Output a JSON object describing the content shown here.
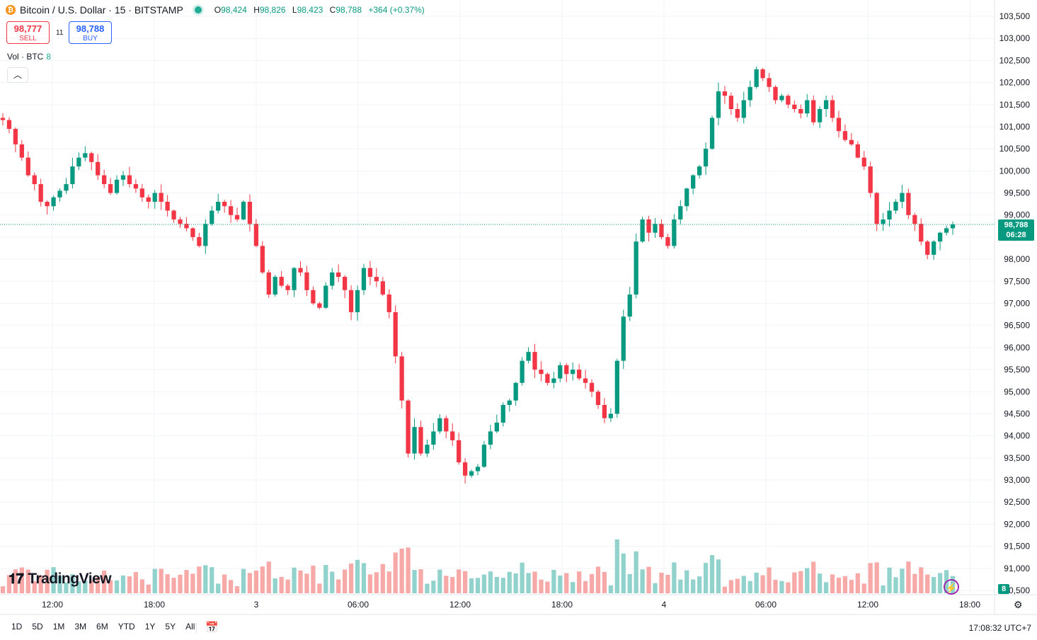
{
  "header": {
    "symbol_title": "Bitcoin / U.S. Dollar · 15 · BITSTAMP",
    "ohlc": {
      "o_label": "O",
      "o": "98,424",
      "h_label": "H",
      "h": "98,826",
      "l_label": "L",
      "l": "98,423",
      "c_label": "C",
      "c": "98,788",
      "change": "+364 (+0.37%)"
    }
  },
  "trade": {
    "sell_price": "98,777",
    "sell_label": "SELL",
    "spread": "11",
    "buy_price": "98,788",
    "buy_label": "BUY"
  },
  "volume_indicator": {
    "label": "Vol · BTC",
    "value": "8"
  },
  "collapse_icon": "chevron-up",
  "logo_text": "TradingView",
  "current_price": {
    "price": "98,788",
    "countdown": "06:28"
  },
  "volume_last": "8",
  "timeframes": [
    "1D",
    "5D",
    "1M",
    "3M",
    "6M",
    "YTD",
    "1Y",
    "5Y",
    "All"
  ],
  "clock": "17:08:32 UTC+7",
  "colors": {
    "up": "#089981",
    "down": "#f23645",
    "up_vol": "#92d2cc",
    "down_vol": "#f7a9a7",
    "grid": "#f0f3fa"
  },
  "chart_data": {
    "type": "candlestick",
    "interval": "15",
    "y_ticks": [
      "103,500",
      "103,000",
      "102,500",
      "102,000",
      "101,500",
      "101,000",
      "100,500",
      "100,000",
      "99,500",
      "99,000",
      "98,500",
      "98,000",
      "97,500",
      "97,000",
      "96,500",
      "96,000",
      "95,500",
      "95,000",
      "94,500",
      "94,000",
      "93,500",
      "93,000",
      "92,500",
      "92,000",
      "91,500",
      "91,000",
      "90,500"
    ],
    "x_ticks": [
      "12:00",
      "18:00",
      "3",
      "06:00",
      "12:00",
      "18:00",
      "4",
      "06:00",
      "12:00",
      "18:00"
    ],
    "ylim": [
      90500,
      103700
    ],
    "close_path": [
      101150,
      100950,
      100600,
      100300,
      99900,
      99700,
      99300,
      99200,
      99400,
      99550,
      99700,
      100100,
      100300,
      100400,
      100200,
      99900,
      99700,
      99500,
      99800,
      99900,
      99700,
      99600,
      99400,
      99300,
      99500,
      99300,
      99100,
      98900,
      98800,
      98700,
      98500,
      98300,
      98800,
      99100,
      99300,
      99200,
      99000,
      98900,
      99300,
      98800,
      98300,
      97700,
      97200,
      97600,
      97400,
      97300,
      97800,
      97700,
      97300,
      97000,
      96900,
      97400,
      97700,
      97600,
      97300,
      96800,
      97300,
      97800,
      97600,
      97500,
      97200,
      96800,
      95800,
      94800,
      93600,
      94200,
      93600,
      93800,
      94100,
      94400,
      94100,
      93900,
      93400,
      93100,
      93200,
      93300,
      93800,
      94100,
      94300,
      94700,
      94800,
      95200,
      95700,
      95900,
      95500,
      95400,
      95200,
      95300,
      95600,
      95400,
      95500,
      95300,
      95200,
      95000,
      94700,
      94400,
      94500,
      95700,
      96700,
      97200,
      98400,
      98900,
      98600,
      98800,
      98500,
      98300,
      98900,
      99200,
      99600,
      99900,
      100100,
      100500,
      101200,
      101800,
      101700,
      101400,
      101200,
      101600,
      101900,
      102300,
      102100,
      101900,
      101600,
      101700,
      101500,
      101400,
      101300,
      101600,
      101100,
      101400,
      101600,
      101200,
      100900,
      100700,
      100600,
      100300,
      100100,
      99500,
      98800,
      98900,
      99100,
      99300,
      99500,
      99000,
      98800,
      98400,
      98100,
      98400,
      98600,
      98700,
      98788
    ],
    "volume_scale_note": "relative"
  }
}
